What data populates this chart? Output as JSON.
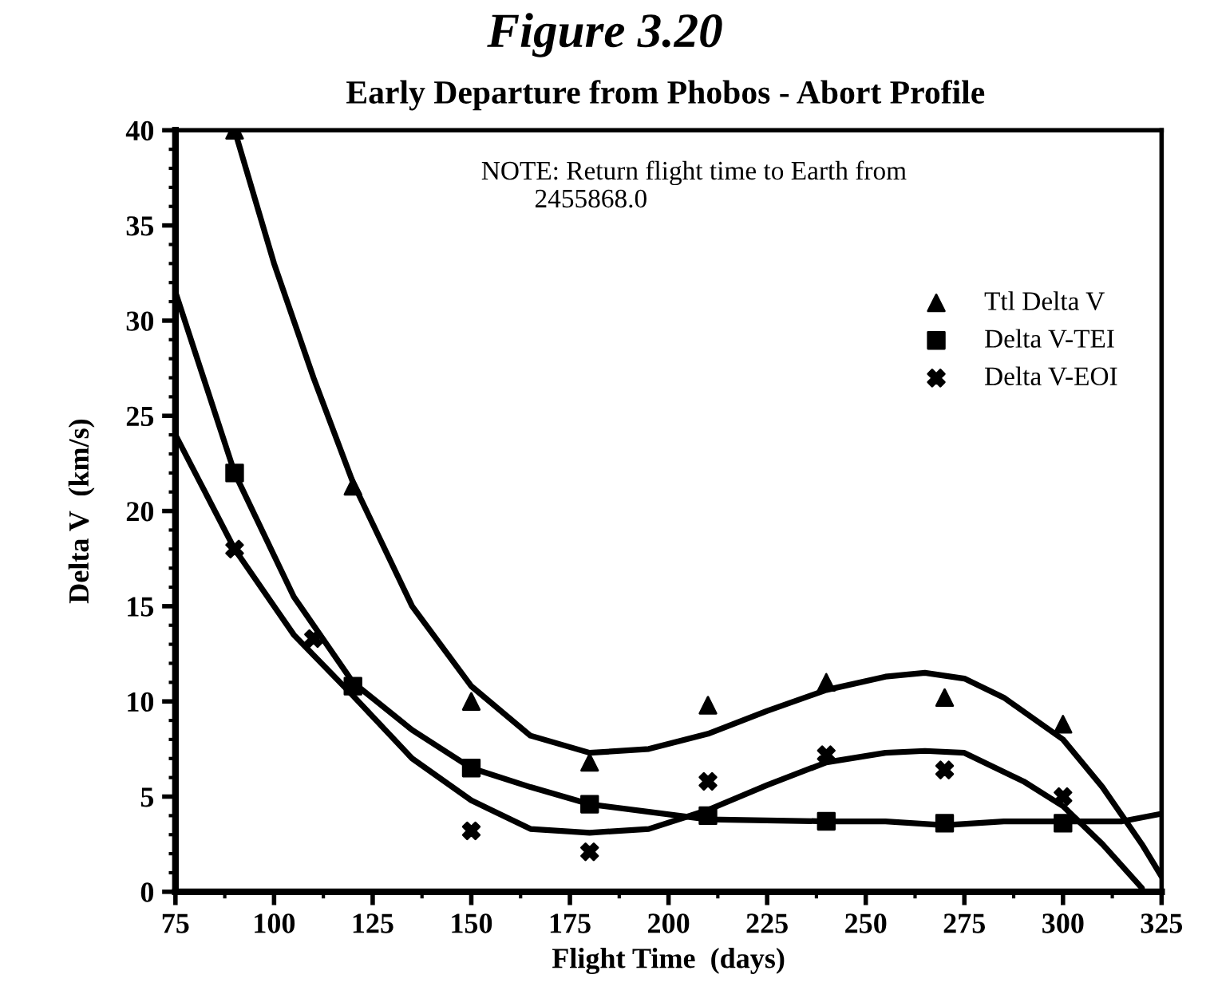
{
  "chart_data": {
    "type": "scatter",
    "title": "Figure 3.20",
    "subtitle": "Early Departure from Phobos - Abort Profile",
    "xlabel": "Flight Time  (days)",
    "ylabel": "Delta V  (km/s)",
    "annotations": [
      "NOTE: Return flight time to Earth from\n        2455868.0"
    ],
    "xlim": [
      75,
      325
    ],
    "xticks": [
      75,
      100,
      125,
      150,
      175,
      200,
      225,
      250,
      275,
      300,
      325
    ],
    "ylim": [
      0,
      40
    ],
    "yticks": [
      0,
      5,
      10,
      15,
      20,
      25,
      30,
      35,
      40
    ],
    "grid": false,
    "legend": "top right",
    "series": [
      {
        "name": "Ttl Delta V",
        "color": "#000000",
        "marker": "triangle",
        "x": [
          90,
          120,
          150,
          180,
          210,
          240,
          270,
          300
        ],
        "values": [
          40,
          21.3,
          10,
          6.8,
          9.8,
          11,
          10.2,
          8.8
        ]
      },
      {
        "name": "Delta V-TEI",
        "color": "#000000",
        "marker": "square",
        "x": [
          90,
          120,
          150,
          180,
          210,
          240,
          270,
          300
        ],
        "values": [
          22,
          10.8,
          6.5,
          4.6,
          4,
          3.7,
          3.6,
          3.6
        ]
      },
      {
        "name": "Delta V-EOI",
        "color": "#000000",
        "marker": "cross",
        "x": [
          90,
          110,
          150,
          180,
          210,
          240,
          270,
          300
        ],
        "values": [
          18,
          13.3,
          3.2,
          2.1,
          5.8,
          7.2,
          6.4,
          5
        ]
      },
      {
        "type": "line",
        "color": "#000000",
        "marker": "none",
        "x": [
          90,
          100,
          110,
          120,
          135,
          150,
          165,
          180,
          195,
          210,
          225,
          240,
          255,
          265,
          275,
          285,
          300,
          310,
          320,
          325
        ],
        "values": [
          40,
          33,
          27,
          21.5,
          15,
          10.8,
          8.2,
          7.3,
          7.5,
          8.3,
          9.5,
          10.6,
          11.3,
          11.5,
          11.2,
          10.2,
          8,
          5.5,
          2.5,
          0.8
        ]
      },
      {
        "type": "line",
        "color": "#000000",
        "marker": "none",
        "x": [
          75,
          90,
          105,
          120,
          135,
          150,
          165,
          180,
          195,
          210,
          240,
          255,
          270,
          285,
          300,
          315,
          325
        ],
        "values": [
          31.5,
          22,
          15.5,
          11,
          8.5,
          6.5,
          5.5,
          4.6,
          4.2,
          3.8,
          3.7,
          3.7,
          3.5,
          3.7,
          3.7,
          3.7,
          4.1
        ]
      },
      {
        "type": "line",
        "color": "#000000",
        "marker": "none",
        "x": [
          75,
          90,
          105,
          120,
          135,
          150,
          165,
          180,
          195,
          210,
          225,
          240,
          255,
          265,
          275,
          290,
          300,
          310,
          320
        ],
        "values": [
          24,
          18,
          13.5,
          10.3,
          7,
          4.8,
          3.3,
          3.1,
          3.3,
          4.3,
          5.6,
          6.8,
          7.3,
          7.4,
          7.3,
          5.8,
          4.5,
          2.5,
          0.2
        ]
      }
    ]
  }
}
